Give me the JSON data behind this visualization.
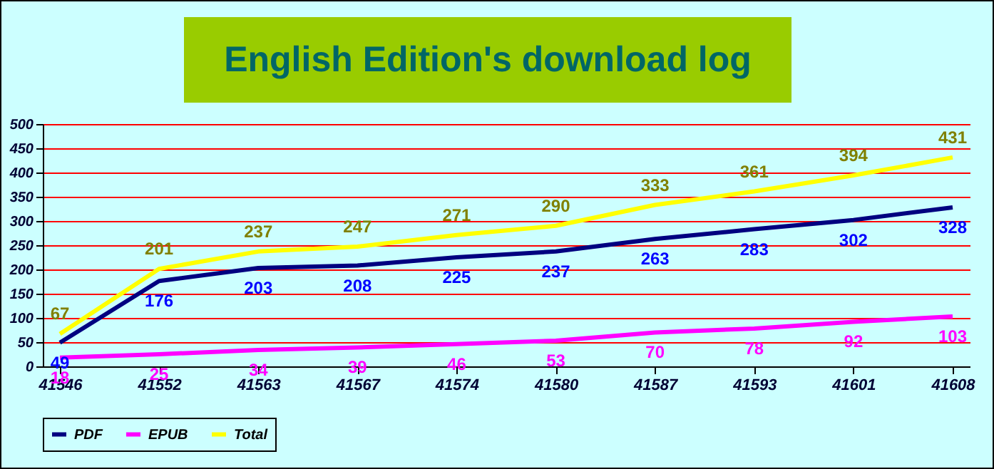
{
  "chart_data": {
    "type": "line",
    "title": "English Edition's download log",
    "categories": [
      "41546",
      "41552",
      "41563",
      "41567",
      "41574",
      "41580",
      "41587",
      "41593",
      "41601",
      "41608"
    ],
    "series": [
      {
        "name": "PDF",
        "color": "#000080",
        "values": [
          49,
          176,
          203,
          208,
          225,
          237,
          263,
          283,
          302,
          328
        ]
      },
      {
        "name": "EPUB",
        "color": "#ff00ff",
        "values": [
          18,
          25,
          34,
          39,
          46,
          53,
          70,
          78,
          92,
          103
        ]
      },
      {
        "name": "Total",
        "color": "#ffff00",
        "values": [
          67,
          201,
          237,
          247,
          271,
          290,
          333,
          361,
          394,
          431
        ]
      }
    ],
    "ylim": [
      0,
      500
    ],
    "yticks": [
      0,
      50,
      100,
      150,
      200,
      250,
      300,
      350,
      400,
      450,
      500
    ],
    "grid": "y",
    "legend": "bottom",
    "data_labels": true,
    "marker": "none"
  }
}
